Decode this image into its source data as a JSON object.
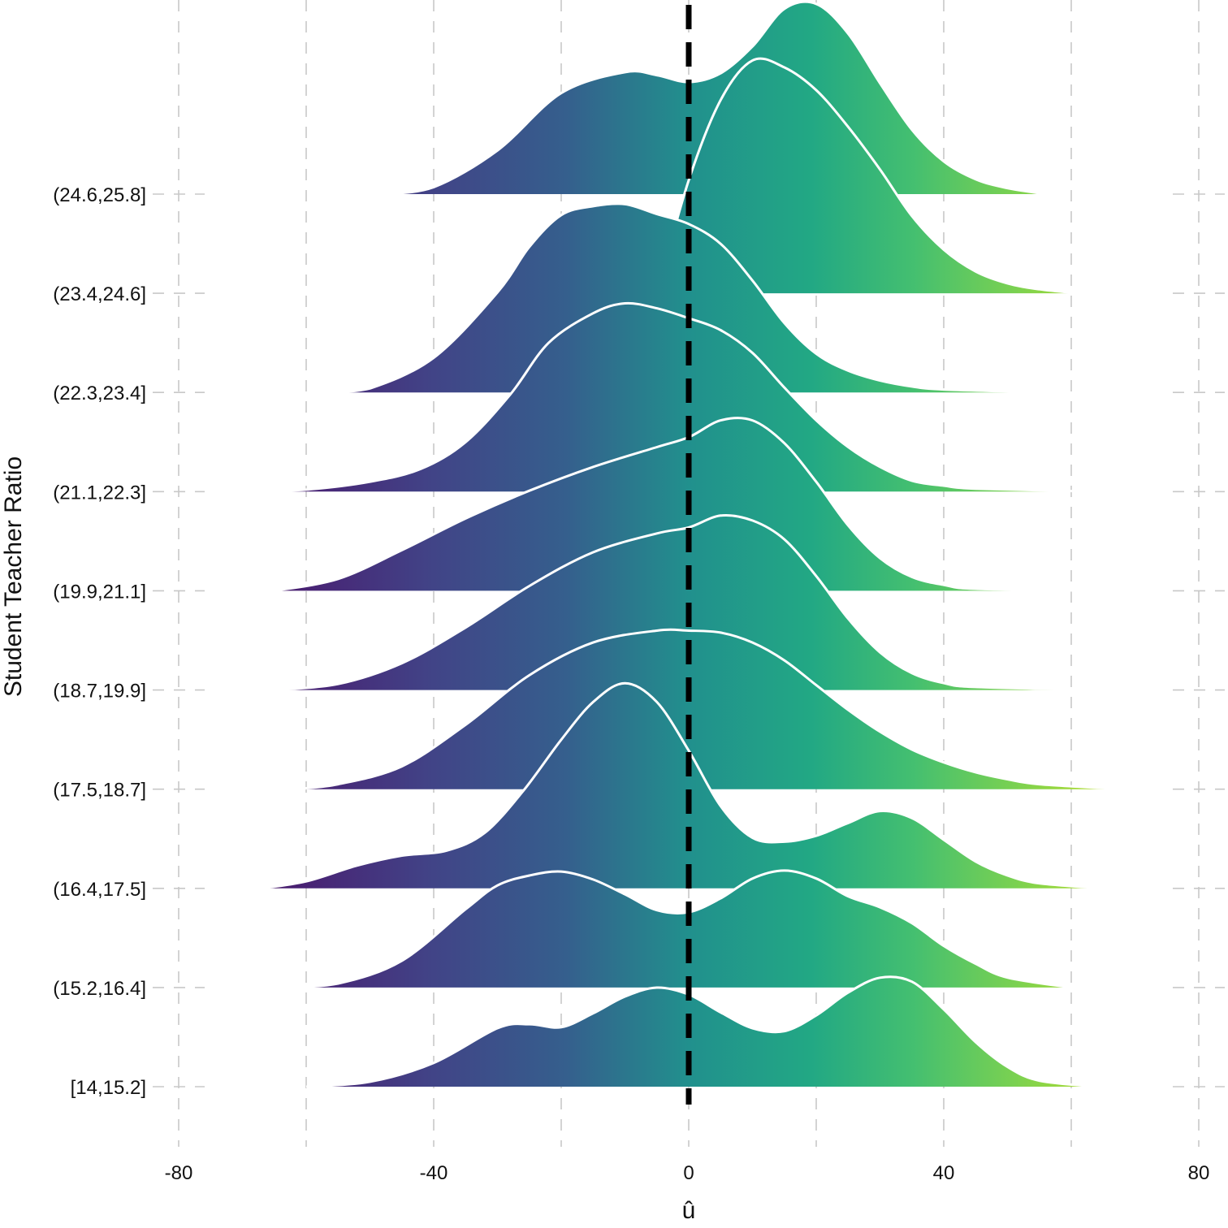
{
  "chart_data": {
    "type": "area",
    "subtype": "ridgeline",
    "xlabel": "û",
    "ylabel": "Student Teacher Ratio",
    "xlim": [
      -80,
      80
    ],
    "x_ticks": [
      -80,
      -40,
      0,
      40,
      80
    ],
    "x_tick_labels": [
      "-80",
      "-40",
      "0",
      "40",
      "80"
    ],
    "grid": "vertical dashed, major and minor",
    "reference_line": {
      "x": 0,
      "style": "dashed",
      "color": "#000000"
    },
    "fill": "viridis gradient along x",
    "outline_color": "#ffffff",
    "categories": [
      "[14,15.2]",
      "(15.2,16.4]",
      "(16.4,17.5]",
      "(17.5,18.7]",
      "(18.7,19.9]",
      "(19.9,21.1]",
      "(21.1,22.3]",
      "(22.3,23.4]",
      "(23.4,24.6]",
      "(24.6,25.8]"
    ],
    "series": [
      {
        "category": "[14,15.2]",
        "range": [
          -60,
          64
        ],
        "density": [
          [
            -60,
            0
          ],
          [
            -50,
            0.05
          ],
          [
            -40,
            0.24
          ],
          [
            -30,
            0.59
          ],
          [
            -25,
            0.63
          ],
          [
            -20,
            0.6
          ],
          [
            -15,
            0.74
          ],
          [
            -10,
            0.91
          ],
          [
            -5,
            1.0
          ],
          [
            0,
            0.93
          ],
          [
            5,
            0.75
          ],
          [
            10,
            0.59
          ],
          [
            15,
            0.56
          ],
          [
            20,
            0.72
          ],
          [
            25,
            0.95
          ],
          [
            30,
            1.1
          ],
          [
            35,
            1.06
          ],
          [
            40,
            0.78
          ],
          [
            45,
            0.45
          ],
          [
            50,
            0.2
          ],
          [
            55,
            0.06
          ],
          [
            64,
            0
          ]
        ]
      },
      {
        "category": "(15.2,16.4]",
        "range": [
          -64,
          60
        ],
        "density": [
          [
            -64,
            0
          ],
          [
            -55,
            0.04
          ],
          [
            -45,
            0.27
          ],
          [
            -35,
            0.79
          ],
          [
            -30,
            1.03
          ],
          [
            -25,
            1.13
          ],
          [
            -20,
            1.17
          ],
          [
            -15,
            1.09
          ],
          [
            -10,
            0.94
          ],
          [
            -5,
            0.78
          ],
          [
            0,
            0.76
          ],
          [
            5,
            0.9
          ],
          [
            10,
            1.1
          ],
          [
            15,
            1.18
          ],
          [
            20,
            1.1
          ],
          [
            25,
            0.92
          ],
          [
            30,
            0.81
          ],
          [
            35,
            0.65
          ],
          [
            40,
            0.42
          ],
          [
            45,
            0.24
          ],
          [
            50,
            0.1
          ],
          [
            60,
            0
          ]
        ]
      },
      {
        "category": "(16.4,17.5]",
        "range": [
          -67,
          65
        ],
        "density": [
          [
            -67,
            0
          ],
          [
            -60,
            0.07
          ],
          [
            -52,
            0.23
          ],
          [
            -45,
            0.33
          ],
          [
            -38,
            0.38
          ],
          [
            -32,
            0.56
          ],
          [
            -26,
            0.98
          ],
          [
            -20,
            1.5
          ],
          [
            -15,
            1.88
          ],
          [
            -10,
            2.07
          ],
          [
            -5,
            1.88
          ],
          [
            0,
            1.39
          ],
          [
            5,
            0.83
          ],
          [
            10,
            0.51
          ],
          [
            15,
            0.47
          ],
          [
            20,
            0.53
          ],
          [
            25,
            0.66
          ],
          [
            30,
            0.78
          ],
          [
            35,
            0.71
          ],
          [
            40,
            0.49
          ],
          [
            45,
            0.27
          ],
          [
            50,
            0.13
          ],
          [
            55,
            0.05
          ],
          [
            65,
            0
          ]
        ]
      },
      {
        "category": "(17.5,18.7]",
        "range": [
          -62,
          68
        ],
        "density": [
          [
            -62,
            0
          ],
          [
            -55,
            0.05
          ],
          [
            -45,
            0.23
          ],
          [
            -35,
            0.65
          ],
          [
            -25,
            1.15
          ],
          [
            -15,
            1.48
          ],
          [
            -5,
            1.6
          ],
          [
            0,
            1.6
          ],
          [
            5,
            1.58
          ],
          [
            10,
            1.48
          ],
          [
            15,
            1.3
          ],
          [
            20,
            1.05
          ],
          [
            25,
            0.8
          ],
          [
            30,
            0.58
          ],
          [
            35,
            0.4
          ],
          [
            40,
            0.27
          ],
          [
            45,
            0.17
          ],
          [
            50,
            0.1
          ],
          [
            55,
            0.05
          ],
          [
            68,
            0
          ]
        ]
      },
      {
        "category": "(18.7,19.9]",
        "range": [
          -65,
          64
        ],
        "density": [
          [
            -65,
            0
          ],
          [
            -55,
            0.06
          ],
          [
            -45,
            0.27
          ],
          [
            -35,
            0.63
          ],
          [
            -25,
            1.05
          ],
          [
            -15,
            1.39
          ],
          [
            -5,
            1.58
          ],
          [
            0,
            1.64
          ],
          [
            5,
            1.76
          ],
          [
            10,
            1.71
          ],
          [
            15,
            1.52
          ],
          [
            20,
            1.15
          ],
          [
            25,
            0.72
          ],
          [
            30,
            0.38
          ],
          [
            35,
            0.17
          ],
          [
            40,
            0.07
          ],
          [
            45,
            0.03
          ],
          [
            64,
            0
          ]
        ]
      },
      {
        "category": "(19.9,21.1]",
        "range": [
          -65,
          64
        ],
        "density": [
          [
            -65,
            0
          ],
          [
            -55,
            0.12
          ],
          [
            -45,
            0.41
          ],
          [
            -35,
            0.73
          ],
          [
            -25,
            1.01
          ],
          [
            -15,
            1.25
          ],
          [
            -5,
            1.45
          ],
          [
            0,
            1.55
          ],
          [
            5,
            1.72
          ],
          [
            10,
            1.72
          ],
          [
            15,
            1.49
          ],
          [
            20,
            1.1
          ],
          [
            25,
            0.66
          ],
          [
            30,
            0.33
          ],
          [
            35,
            0.14
          ],
          [
            40,
            0.06
          ],
          [
            45,
            0.02
          ],
          [
            64,
            0
          ]
        ]
      },
      {
        "category": "(21.1,22.3]",
        "range": [
          -68,
          64
        ],
        "density": [
          [
            -68,
            0
          ],
          [
            -60,
            0.02
          ],
          [
            -50,
            0.1
          ],
          [
            -42,
            0.23
          ],
          [
            -35,
            0.5
          ],
          [
            -28,
            0.98
          ],
          [
            -22,
            1.5
          ],
          [
            -15,
            1.8
          ],
          [
            -10,
            1.9
          ],
          [
            -5,
            1.85
          ],
          [
            0,
            1.75
          ],
          [
            5,
            1.63
          ],
          [
            10,
            1.4
          ],
          [
            15,
            1.05
          ],
          [
            20,
            0.72
          ],
          [
            25,
            0.45
          ],
          [
            30,
            0.25
          ],
          [
            35,
            0.11
          ],
          [
            40,
            0.06
          ],
          [
            45,
            0.03
          ],
          [
            64,
            0
          ]
        ]
      },
      {
        "category": "(22.3,23.4]",
        "range": [
          -56,
          56
        ],
        "density": [
          [
            -56,
            0
          ],
          [
            -50,
            0.04
          ],
          [
            -40,
            0.35
          ],
          [
            -30,
            1.01
          ],
          [
            -25,
            1.47
          ],
          [
            -20,
            1.79
          ],
          [
            -15,
            1.88
          ],
          [
            -10,
            1.9
          ],
          [
            -5,
            1.8
          ],
          [
            0,
            1.7
          ],
          [
            5,
            1.5
          ],
          [
            10,
            1.13
          ],
          [
            15,
            0.7
          ],
          [
            20,
            0.39
          ],
          [
            25,
            0.22
          ],
          [
            30,
            0.12
          ],
          [
            35,
            0.06
          ],
          [
            40,
            0.03
          ],
          [
            56,
            0
          ]
        ]
      },
      {
        "category": "(23.4,24.6]",
        "range": [
          -5,
          61
        ],
        "density": [
          [
            -5,
            0
          ],
          [
            0,
            1.14
          ],
          [
            5,
            1.95
          ],
          [
            10,
            2.35
          ],
          [
            15,
            2.28
          ],
          [
            20,
            2.05
          ],
          [
            25,
            1.68
          ],
          [
            30,
            1.25
          ],
          [
            35,
            0.78
          ],
          [
            40,
            0.44
          ],
          [
            45,
            0.22
          ],
          [
            50,
            0.1
          ],
          [
            55,
            0.04
          ],
          [
            61,
            0
          ]
        ]
      },
      {
        "category": "(24.6,25.8]",
        "range": [
          -48,
          56
        ],
        "density": [
          [
            -48,
            0
          ],
          [
            -40,
            0.07
          ],
          [
            -30,
            0.44
          ],
          [
            -20,
            1.02
          ],
          [
            -10,
            1.23
          ],
          [
            -5,
            1.2
          ],
          [
            0,
            1.13
          ],
          [
            5,
            1.22
          ],
          [
            10,
            1.49
          ],
          [
            15,
            1.87
          ],
          [
            20,
            1.92
          ],
          [
            25,
            1.62
          ],
          [
            30,
            1.12
          ],
          [
            35,
            0.65
          ],
          [
            40,
            0.33
          ],
          [
            45,
            0.15
          ],
          [
            50,
            0.06
          ],
          [
            56,
            0
          ]
        ]
      }
    ]
  }
}
